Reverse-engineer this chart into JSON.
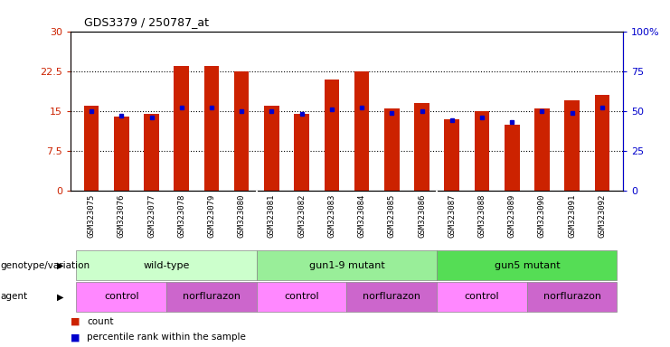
{
  "title": "GDS3379 / 250787_at",
  "samples": [
    "GSM323075",
    "GSM323076",
    "GSM323077",
    "GSM323078",
    "GSM323079",
    "GSM323080",
    "GSM323081",
    "GSM323082",
    "GSM323083",
    "GSM323084",
    "GSM323085",
    "GSM323086",
    "GSM323087",
    "GSM323088",
    "GSM323089",
    "GSM323090",
    "GSM323091",
    "GSM323092"
  ],
  "counts": [
    16.0,
    14.0,
    14.5,
    23.5,
    23.5,
    22.5,
    16.0,
    14.5,
    21.0,
    22.5,
    15.5,
    16.5,
    13.5,
    15.0,
    12.5,
    15.5,
    17.0,
    18.0
  ],
  "percentiles": [
    50,
    47,
    46,
    52,
    52,
    50,
    50,
    48,
    51,
    52,
    49,
    50,
    44,
    46,
    43,
    50,
    49,
    52
  ],
  "bar_color": "#cc2200",
  "dot_color": "#0000cc",
  "ylim_left": [
    0,
    30
  ],
  "ylim_right": [
    0,
    100
  ],
  "yticks_left": [
    0,
    7.5,
    15,
    22.5,
    30
  ],
  "ytick_labels_left": [
    "0",
    "7.5",
    "15",
    "22.5",
    "30"
  ],
  "yticks_right": [
    0,
    25,
    50,
    75,
    100
  ],
  "ytick_labels_right": [
    "0",
    "25",
    "50",
    "75",
    "100%"
  ],
  "genotype_groups": [
    {
      "label": "wild-type",
      "start": 0,
      "end": 5,
      "color": "#ccffcc"
    },
    {
      "label": "gun1-9 mutant",
      "start": 6,
      "end": 11,
      "color": "#99ee99"
    },
    {
      "label": "gun5 mutant",
      "start": 12,
      "end": 17,
      "color": "#55dd55"
    }
  ],
  "agent_groups": [
    {
      "label": "control",
      "start": 0,
      "end": 2,
      "color": "#ff88ff"
    },
    {
      "label": "norflurazon",
      "start": 3,
      "end": 5,
      "color": "#cc66cc"
    },
    {
      "label": "control",
      "start": 6,
      "end": 8,
      "color": "#ff88ff"
    },
    {
      "label": "norflurazon",
      "start": 9,
      "end": 11,
      "color": "#cc66cc"
    },
    {
      "label": "control",
      "start": 12,
      "end": 14,
      "color": "#ff88ff"
    },
    {
      "label": "norflurazon",
      "start": 15,
      "end": 17,
      "color": "#cc66cc"
    }
  ],
  "genotype_label": "genotype/variation",
  "agent_label": "agent",
  "legend_count": "count",
  "legend_percentile": "percentile rank within the sample",
  "plot_bg": "#ffffff",
  "xtick_bg": "#dddddd",
  "bar_width": 0.5
}
